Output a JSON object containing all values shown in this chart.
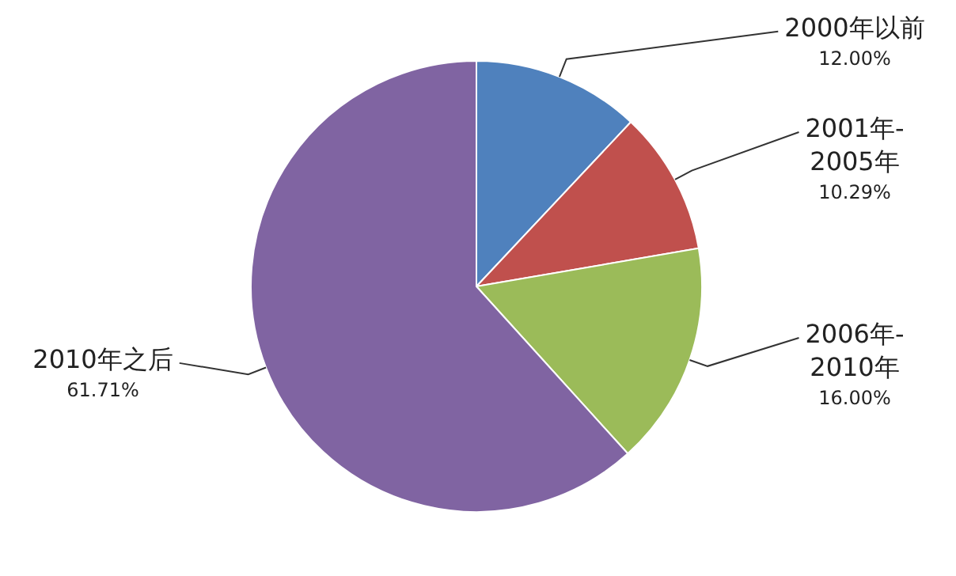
{
  "chart_data": {
    "type": "pie",
    "categories": [
      "2000年以前",
      "2001年-2005年",
      "2006年-2010年",
      "2010年之后"
    ],
    "values": [
      12.0,
      10.29,
      16.0,
      61.71
    ],
    "colors": [
      "#4f81bd",
      "#c0504d",
      "#9bbb59",
      "#8064a2"
    ],
    "value_labels": [
      "12.00%",
      "10.29%",
      "16.00%",
      "61.71%"
    ],
    "legend": false
  }
}
